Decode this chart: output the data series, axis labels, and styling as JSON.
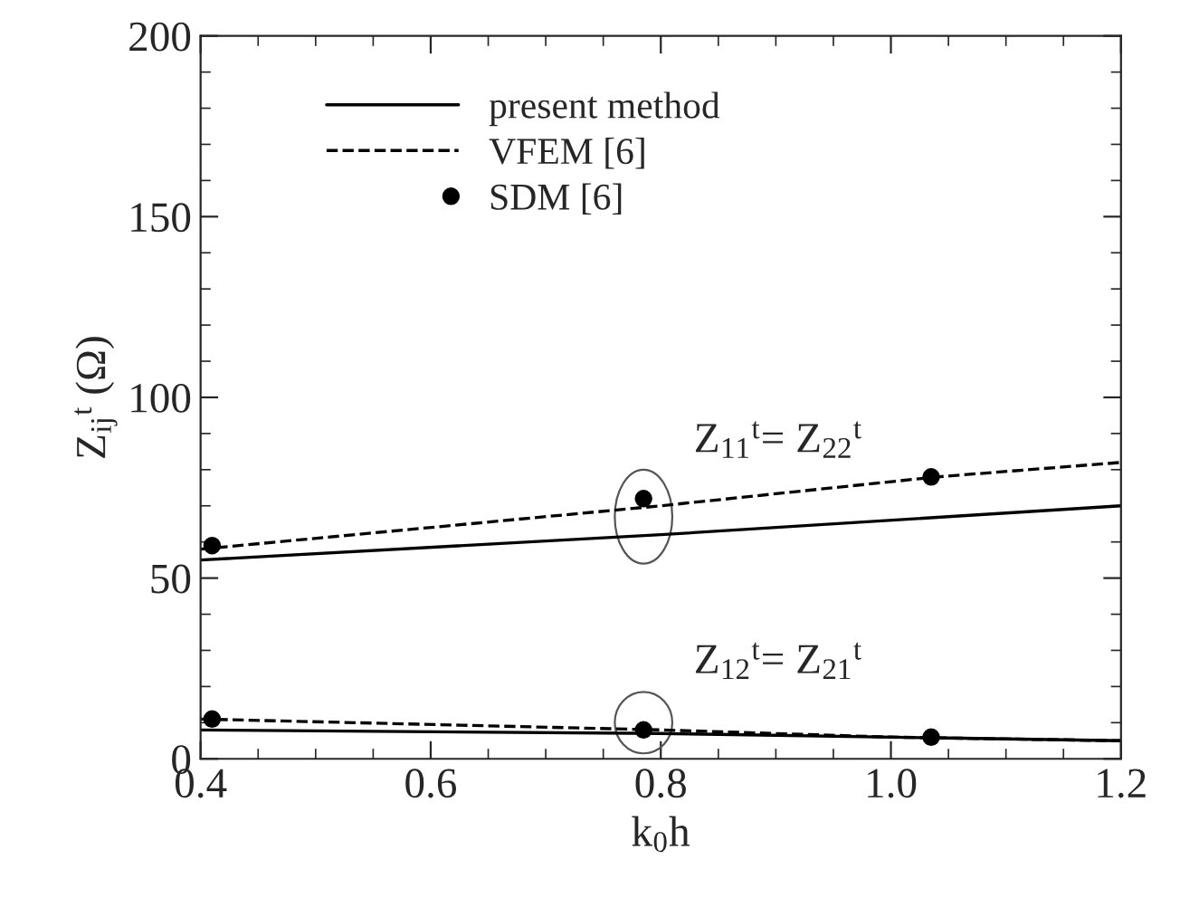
{
  "chart_data": {
    "type": "line",
    "xlabel": "k$_{0}$h",
    "ylabel": "Z$_{ij}$$^{t}$ (Ω)",
    "xlim": [
      0.4,
      1.2
    ],
    "xticks": [
      {
        "value": 0.4,
        "label": "0.4"
      },
      {
        "value": 0.6,
        "label": "0.6"
      },
      {
        "value": 0.8,
        "label": "0.8"
      },
      {
        "value": 1.0,
        "label": "1.0"
      },
      {
        "value": 1.2,
        "label": "1.2"
      }
    ],
    "ylim": [
      0,
      200
    ],
    "yticks": [
      0,
      50,
      100,
      150,
      200
    ],
    "legend": "top left",
    "grid": false,
    "series": [
      {
        "name": "present method",
        "type": "line",
        "line_style": "solid",
        "color": "#000000",
        "x": [
          0.4,
          0.8,
          1.2
        ],
        "values": [
          55,
          62,
          70
        ]
      },
      {
        "type": "line",
        "line_style": "solid",
        "color": "#000000",
        "x": [
          0.4,
          0.8,
          1.2
        ],
        "values": [
          8,
          7,
          5
        ]
      },
      {
        "name": "VFEM [6]",
        "type": "line",
        "line_style": "dashed",
        "color": "#000000",
        "x": [
          0.4,
          0.8,
          1.04,
          1.2
        ],
        "values": [
          58,
          70,
          78,
          82
        ]
      },
      {
        "type": "line",
        "line_style": "dashed",
        "color": "#000000",
        "x": [
          0.4,
          0.8,
          1.0,
          1.2
        ],
        "values": [
          11,
          8,
          6,
          5
        ]
      },
      {
        "name": "SDM [6]",
        "type": "scatter",
        "marker": "circle",
        "color": "#000000",
        "x": [
          0.41,
          0.785,
          1.035
        ],
        "values": [
          59,
          72,
          78
        ]
      },
      {
        "type": "scatter",
        "marker": "circle",
        "color": "#000000",
        "x": [
          0.41,
          0.785,
          1.035
        ],
        "values": [
          11,
          8,
          6
        ]
      }
    ],
    "annotations": [
      {
        "text": "Z$_{11}$$^{t}$= Z$_{22}$$^{t}$",
        "x": 0.785,
        "y": 67
      },
      {
        "text": "Z$_{12}$$^{t}$= Z$_{21}$$^{t}$",
        "x": 0.785,
        "y": 10
      }
    ]
  }
}
